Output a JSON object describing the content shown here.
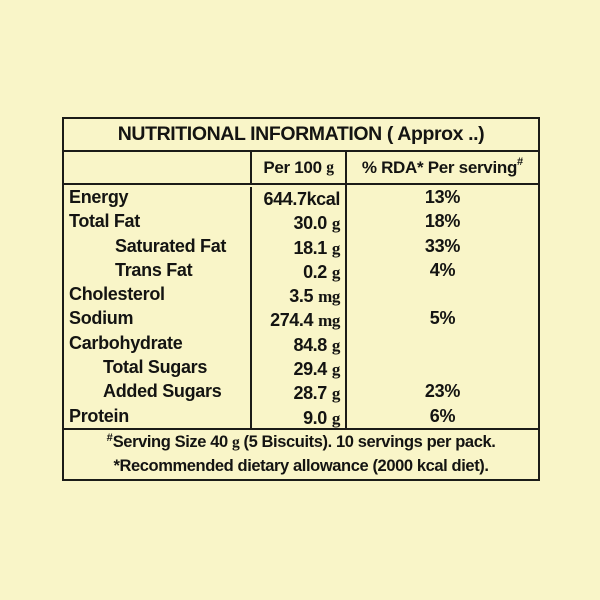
{
  "colors": {
    "background": "#F9F5C8",
    "rule": "#1C1C18",
    "text": "#141412"
  },
  "table": {
    "title": "NUTRITIONAL INFORMATION ( Approx ..)",
    "header": {
      "blank": "",
      "per100_label": "Per 100",
      "per100_unit": "g",
      "rda_label": "% RDA* Per serving",
      "rda_sup": "#"
    },
    "rows": [
      {
        "label": "Energy",
        "value": "644.7",
        "unit": "kcal",
        "pct": "13%",
        "indent": 0
      },
      {
        "label": "Total Fat",
        "value": "30.0",
        "unit": "g",
        "pct": "18%",
        "indent": 0
      },
      {
        "label": "Saturated Fat",
        "value": "18.1",
        "unit": "g",
        "pct": "33%",
        "indent": 1
      },
      {
        "label": "Trans Fat",
        "value": "0.2",
        "unit": "g",
        "pct": "4%",
        "indent": 1
      },
      {
        "label": "Cholesterol",
        "value": "3.5",
        "unit": "mg",
        "pct": "",
        "indent": 0
      },
      {
        "label": "Sodium",
        "value": "274.4",
        "unit": "mg",
        "pct": "5%",
        "indent": 0
      },
      {
        "label": "Carbohydrate",
        "value": "84.8",
        "unit": "g",
        "pct": "",
        "indent": 0
      },
      {
        "label": "Total Sugars",
        "value": "29.4",
        "unit": "g",
        "pct": "",
        "indent": 2
      },
      {
        "label": "Added Sugars",
        "value": "28.7",
        "unit": "g",
        "pct": "23%",
        "indent": 2
      },
      {
        "label": "Protein",
        "value": "9.0",
        "unit": "g",
        "pct": "6%",
        "indent": 0
      }
    ],
    "footnote": {
      "line1_sup": "#",
      "line1_pre": "Serving Size 40 ",
      "line1_unit": "g",
      "line1_post": " (5 Biscuits). 10 servings per pack.",
      "line2": "*Recommended dietary allowance (2000 kcal diet)."
    }
  }
}
